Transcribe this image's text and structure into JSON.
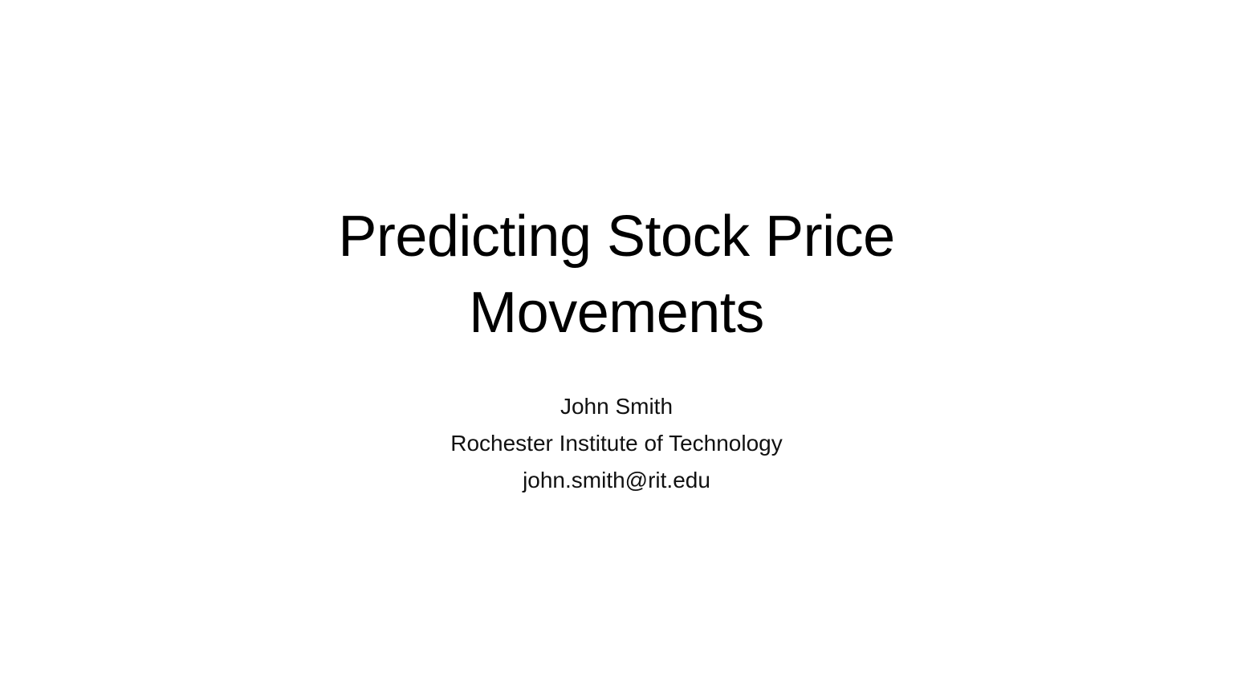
{
  "slide": {
    "title_lines": [
      "Predicting Stock Price",
      "Movements"
    ],
    "author": "John Smith",
    "institution": "Rochester Institute of Technology",
    "email": "john.smith@rit.edu"
  },
  "colors": {
    "background": "#ffffff",
    "text": "#000000"
  }
}
